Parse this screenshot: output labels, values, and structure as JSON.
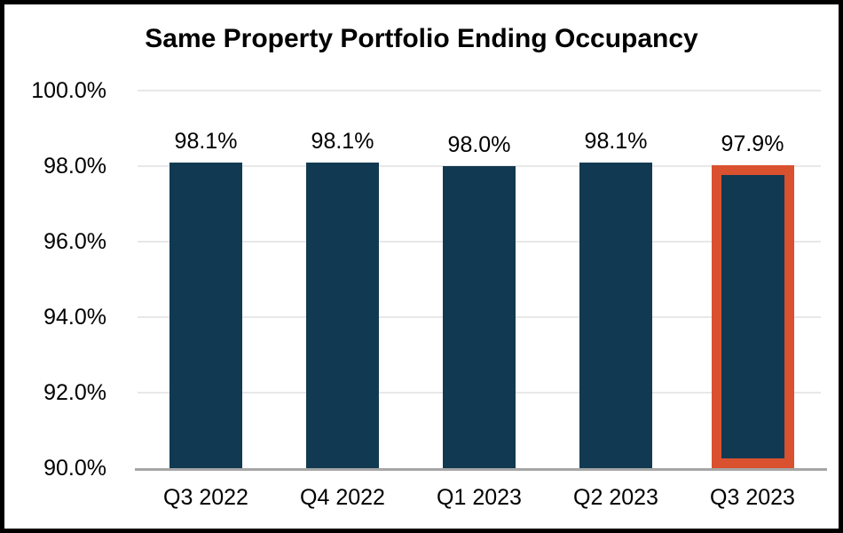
{
  "chart_data": {
    "type": "bar",
    "title": "Same Property Portfolio Ending Occupancy",
    "categories": [
      "Q3 2022",
      "Q4 2022",
      "Q1 2023",
      "Q2 2023",
      "Q3 2023"
    ],
    "values": [
      98.1,
      98.1,
      98.0,
      98.1,
      97.9
    ],
    "data_labels": [
      "98.1%",
      "98.1%",
      "98.0%",
      "98.1%",
      "97.9%"
    ],
    "highlighted_category": "Q3 2023",
    "highlighted_index": 4,
    "xlabel": "",
    "ylabel": "",
    "ylim": [
      90,
      100
    ],
    "y_ticks": [
      {
        "label": "100.0%",
        "value": 100
      },
      {
        "label": "98.0%",
        "value": 98
      },
      {
        "label": "96.0%",
        "value": 96
      },
      {
        "label": "94.0%",
        "value": 94
      },
      {
        "label": "92.0%",
        "value": 92
      },
      {
        "label": "90.0%",
        "value": 90
      }
    ],
    "grid": true,
    "legend": "none",
    "colors": {
      "bar_fill": "#113A52",
      "highlight_border": "#D9512E",
      "gridline": "#E8E8E8",
      "axis_line": "#A6A6A6",
      "text": "#000000",
      "frame_border": "#000000",
      "background": "#FFFFFF"
    }
  }
}
